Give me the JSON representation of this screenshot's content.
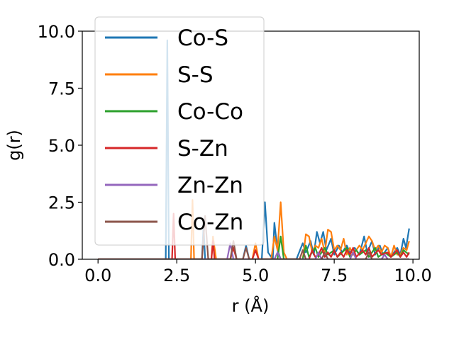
{
  "chart_data": {
    "type": "line",
    "xlabel": "r (Å)",
    "ylabel": "g(r)",
    "xlim": [
      -0.5,
      10.2
    ],
    "ylim": [
      0,
      10
    ],
    "xticks": [
      "0.0",
      "2.5",
      "5.0",
      "7.5",
      "10.0"
    ],
    "yticks": [
      "0.0",
      "2.5",
      "5.0",
      "7.5",
      "10.0"
    ],
    "xtick_values": [
      0,
      2.5,
      5,
      7.5,
      10
    ],
    "ytick_values": [
      0,
      2.5,
      5,
      7.5,
      10
    ],
    "grid": false,
    "legend_position": "top-left",
    "series": [
      {
        "name": "Co-S",
        "color": "#1f77b4",
        "points": [
          [
            0,
            0
          ],
          [
            2.15,
            0
          ],
          [
            2.2,
            9.6
          ],
          [
            2.25,
            0
          ],
          [
            3.3,
            0
          ],
          [
            3.35,
            1.5
          ],
          [
            3.4,
            0
          ],
          [
            4.6,
            0
          ],
          [
            4.7,
            0.6
          ],
          [
            4.8,
            0
          ],
          [
            5.2,
            0
          ],
          [
            5.3,
            2.5
          ],
          [
            5.4,
            0.3
          ],
          [
            5.55,
            0
          ],
          [
            5.6,
            1.6
          ],
          [
            5.7,
            0.4
          ],
          [
            5.8,
            0
          ],
          [
            6.3,
            0
          ],
          [
            6.5,
            0.7
          ],
          [
            6.6,
            0.3
          ],
          [
            6.75,
            0.8
          ],
          [
            6.85,
            0.2
          ],
          [
            6.95,
            1.2
          ],
          [
            7.05,
            0.7
          ],
          [
            7.15,
            1.2
          ],
          [
            7.25,
            0.4
          ],
          [
            7.4,
            0.9
          ],
          [
            7.5,
            0.2
          ],
          [
            7.65,
            0.6
          ],
          [
            7.75,
            0.3
          ],
          [
            7.9,
            0.6
          ],
          [
            8.0,
            0.3
          ],
          [
            8.15,
            0.5
          ],
          [
            8.3,
            0.2
          ],
          [
            8.45,
            1.0
          ],
          [
            8.55,
            0.3
          ],
          [
            8.7,
            0.8
          ],
          [
            8.8,
            0.2
          ],
          [
            8.95,
            0.6
          ],
          [
            9.05,
            0.2
          ],
          [
            9.2,
            0.5
          ],
          [
            9.3,
            0.1
          ],
          [
            9.5,
            0.5
          ],
          [
            9.6,
            0.2
          ],
          [
            9.7,
            0.9
          ],
          [
            9.78,
            0.5
          ],
          [
            9.88,
            1.35
          ]
        ]
      },
      {
        "name": "S-S",
        "color": "#ff7f0e",
        "points": [
          [
            0,
            0
          ],
          [
            2.95,
            0
          ],
          [
            3.0,
            2.6
          ],
          [
            3.05,
            0
          ],
          [
            3.6,
            0
          ],
          [
            3.65,
            1.0
          ],
          [
            3.75,
            0
          ],
          [
            4.9,
            0
          ],
          [
            5.0,
            0.7
          ],
          [
            5.1,
            0
          ],
          [
            5.5,
            0
          ],
          [
            5.6,
            1.0
          ],
          [
            5.7,
            0.4
          ],
          [
            5.8,
            2.5
          ],
          [
            5.9,
            0.3
          ],
          [
            6.0,
            0
          ],
          [
            6.5,
            0
          ],
          [
            6.6,
            1.1
          ],
          [
            6.7,
            1.0
          ],
          [
            6.8,
            0.3
          ],
          [
            6.9,
            0.6
          ],
          [
            7.0,
            0.5
          ],
          [
            7.1,
            0.9
          ],
          [
            7.2,
            0.3
          ],
          [
            7.3,
            1.3
          ],
          [
            7.4,
            1.2
          ],
          [
            7.5,
            0.4
          ],
          [
            7.6,
            0.6
          ],
          [
            7.7,
            0.4
          ],
          [
            7.8,
            0.9
          ],
          [
            7.9,
            0.2
          ],
          [
            8.0,
            0.5
          ],
          [
            8.1,
            0.2
          ],
          [
            8.3,
            0.6
          ],
          [
            8.4,
            0.4
          ],
          [
            8.6,
            1.0
          ],
          [
            8.7,
            0.8
          ],
          [
            8.8,
            0.4
          ],
          [
            8.9,
            0.6
          ],
          [
            9.0,
            0.3
          ],
          [
            9.1,
            0.6
          ],
          [
            9.2,
            0.5
          ],
          [
            9.3,
            0.1
          ],
          [
            9.4,
            0.6
          ],
          [
            9.5,
            0.2
          ],
          [
            9.6,
            0.2
          ],
          [
            9.7,
            0.5
          ],
          [
            9.8,
            0.4
          ],
          [
            9.88,
            0.8
          ]
        ]
      },
      {
        "name": "Co-Co",
        "color": "#2ca02c",
        "points": [
          [
            0,
            0
          ],
          [
            5.7,
            0
          ],
          [
            5.8,
            1.0
          ],
          [
            5.9,
            0
          ],
          [
            6.5,
            0
          ],
          [
            6.6,
            0.6
          ],
          [
            6.7,
            0.1
          ],
          [
            6.9,
            0.5
          ],
          [
            7.0,
            0.1
          ],
          [
            7.2,
            0.5
          ],
          [
            7.3,
            0.2
          ],
          [
            7.5,
            0.4
          ],
          [
            7.6,
            0.1
          ],
          [
            7.9,
            0.5
          ],
          [
            8.0,
            0.1
          ],
          [
            8.2,
            0.4
          ],
          [
            8.3,
            0.2
          ],
          [
            8.5,
            0.4
          ],
          [
            8.6,
            0.1
          ],
          [
            8.8,
            0.5
          ],
          [
            8.9,
            0.1
          ],
          [
            9.1,
            0.3
          ],
          [
            9.3,
            0.1
          ],
          [
            9.5,
            0.3
          ],
          [
            9.6,
            0.1
          ],
          [
            9.7,
            0.4
          ],
          [
            9.88,
            0.2
          ]
        ]
      },
      {
        "name": "S-Zn",
        "color": "#d62728",
        "points": [
          [
            0,
            0
          ],
          [
            2.35,
            0
          ],
          [
            2.4,
            2.0
          ],
          [
            2.45,
            0
          ],
          [
            3.6,
            0
          ],
          [
            3.65,
            0.8
          ],
          [
            3.7,
            0
          ],
          [
            4.2,
            0
          ],
          [
            4.3,
            0.5
          ],
          [
            4.4,
            0
          ],
          [
            4.9,
            0
          ],
          [
            5.0,
            0.4
          ],
          [
            5.1,
            0
          ],
          [
            6.7,
            0
          ],
          [
            6.8,
            0.4
          ],
          [
            6.9,
            0.1
          ],
          [
            7.0,
            0.2
          ],
          [
            7.1,
            0.5
          ],
          [
            7.2,
            0.1
          ],
          [
            7.3,
            0.3
          ],
          [
            7.4,
            0.1
          ],
          [
            7.5,
            0.4
          ],
          [
            7.6,
            0.1
          ],
          [
            7.7,
            0.3
          ],
          [
            7.8,
            0.1
          ],
          [
            7.9,
            0.4
          ],
          [
            8.0,
            0.2
          ],
          [
            8.1,
            0.5
          ],
          [
            8.2,
            0.1
          ],
          [
            8.4,
            0.4
          ],
          [
            8.5,
            0.2
          ],
          [
            8.6,
            0.5
          ],
          [
            8.7,
            0.1
          ],
          [
            8.9,
            0.4
          ],
          [
            9.0,
            0.2
          ],
          [
            9.2,
            0.3
          ],
          [
            9.3,
            0.1
          ],
          [
            9.5,
            0.4
          ],
          [
            9.6,
            0.1
          ],
          [
            9.7,
            0.3
          ],
          [
            9.8,
            0.1
          ],
          [
            9.88,
            0.3
          ]
        ]
      },
      {
        "name": "Zn-Zn",
        "color": "#9467bd",
        "points": [
          [
            0,
            0
          ],
          [
            4.1,
            0
          ],
          [
            4.2,
            0.7
          ],
          [
            4.3,
            0
          ],
          [
            5.6,
            0
          ],
          [
            5.7,
            0.3
          ],
          [
            5.8,
            0
          ],
          [
            6.9,
            0
          ],
          [
            7.0,
            0.3
          ],
          [
            7.1,
            0
          ],
          [
            8.0,
            0
          ],
          [
            8.1,
            0.3
          ],
          [
            8.2,
            0
          ],
          [
            9.0,
            0
          ],
          [
            9.1,
            0.2
          ],
          [
            9.2,
            0
          ],
          [
            9.88,
            0
          ]
        ]
      },
      {
        "name": "Co-Zn",
        "color": "#8c564b",
        "points": [
          [
            0,
            0
          ],
          [
            3.3,
            0
          ],
          [
            3.4,
            1.9
          ],
          [
            3.5,
            0
          ],
          [
            4.2,
            0
          ],
          [
            4.3,
            0.8
          ],
          [
            4.4,
            0
          ],
          [
            4.6,
            0
          ],
          [
            4.7,
            0.5
          ],
          [
            4.8,
            0
          ],
          [
            6.4,
            0
          ],
          [
            6.5,
            0.4
          ],
          [
            6.6,
            0
          ],
          [
            7.1,
            0
          ],
          [
            7.2,
            0.3
          ],
          [
            7.3,
            0
          ],
          [
            8.5,
            0
          ],
          [
            8.6,
            0.3
          ],
          [
            8.7,
            0
          ],
          [
            9.88,
            0
          ]
        ]
      }
    ]
  }
}
